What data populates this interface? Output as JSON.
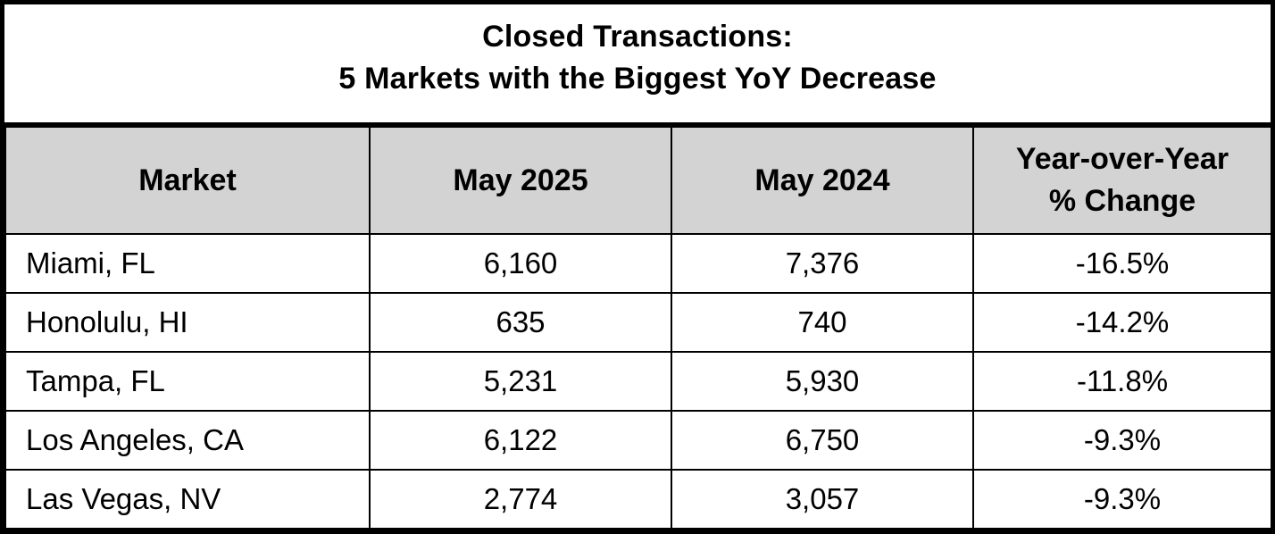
{
  "colors": {
    "border": "#000000",
    "header_bg": "#d3d3d3",
    "page_bg": "#ffffff",
    "text": "#000000"
  },
  "title": {
    "line1": "Closed Transactions:",
    "line2": "5 Markets with the Biggest YoY Decrease"
  },
  "chart_data": {
    "type": "table",
    "title": "Closed Transactions: 5 Markets with the Biggest YoY Decrease",
    "columns": [
      "Market",
      "May 2025",
      "May 2024",
      "Year-over-Year % Change"
    ],
    "rows": [
      [
        "Miami, FL",
        "6,160",
        "7,376",
        "-16.5%"
      ],
      [
        "Honolulu, HI",
        "635",
        "740",
        "-14.2%"
      ],
      [
        "Tampa, FL",
        "5,231",
        "5,930",
        "-11.8%"
      ],
      [
        "Los Angeles, CA",
        "6,122",
        "6,750",
        "-9.3%"
      ],
      [
        "Las Vegas, NV",
        "2,774",
        "3,057",
        "-9.3%"
      ]
    ],
    "layout": {
      "header_background": "#d3d3d3",
      "grid": "on",
      "first_column_align": "left",
      "other_columns_align": "center"
    }
  }
}
